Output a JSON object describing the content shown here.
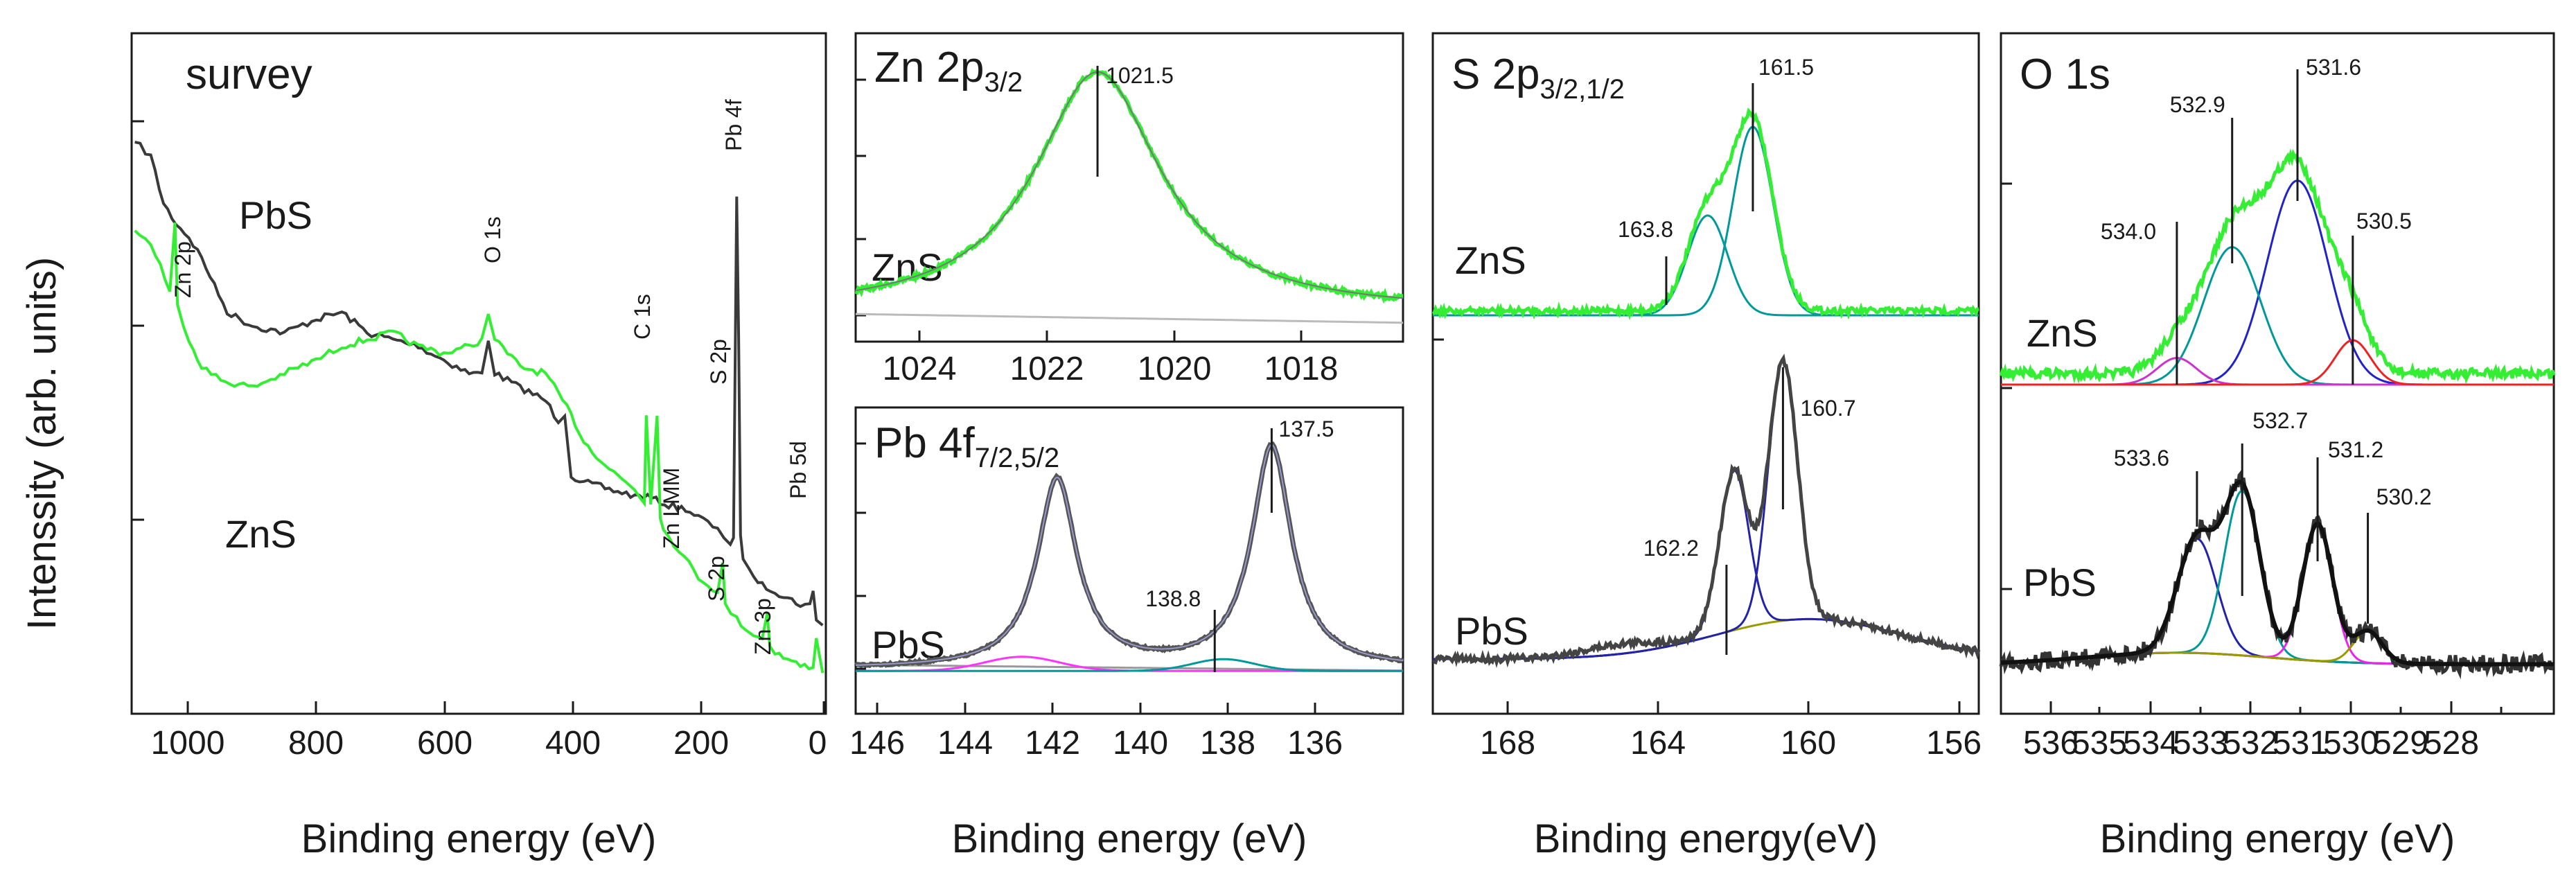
{
  "figure": {
    "y_axis_label": "Intenssity (arb. units)"
  },
  "chart_data": [
    {
      "id": "survey",
      "type": "line",
      "title": "survey",
      "xlabel": "Binding energy (eV)",
      "xlim": [
        1090,
        0
      ],
      "ylim": [
        0,
        100
      ],
      "xticks": [
        1000,
        800,
        600,
        400,
        200,
        0
      ],
      "series": [
        {
          "name": "PbS",
          "color": "#3a3a3a",
          "x": [
            1085,
            1060,
            1040,
            1020,
            1000,
            980,
            960,
            940,
            900,
            850,
            800,
            760,
            720,
            680,
            640,
            600,
            560,
            540,
            530,
            520,
            480,
            440,
            420,
            410,
            400,
            380,
            340,
            300,
            280,
            260,
            220,
            200,
            170,
            160,
            150,
            145,
            140,
            137,
            134,
            130,
            120,
            100,
            80,
            60,
            40,
            25,
            20,
            15,
            5
          ],
          "y": [
            84,
            82,
            75,
            72,
            70,
            67,
            63,
            59,
            57,
            56,
            58,
            59,
            56,
            55,
            54,
            52,
            50,
            50,
            55,
            50,
            48,
            46,
            43,
            44,
            35,
            34,
            33,
            32,
            32,
            31,
            30,
            29,
            27,
            26,
            25,
            26,
            76,
            55,
            26,
            23,
            21,
            19,
            18,
            17,
            16,
            16,
            18,
            14,
            13
          ]
        },
        {
          "name": "ZnS",
          "color": "#33ee33",
          "x": [
            1085,
            1060,
            1045,
            1030,
            1022,
            1018,
            1000,
            980,
            950,
            900,
            850,
            800,
            760,
            720,
            680,
            640,
            600,
            560,
            540,
            530,
            520,
            480,
            440,
            420,
            400,
            380,
            340,
            300,
            285,
            282,
            275,
            265,
            260,
            255,
            230,
            200,
            170,
            162,
            158,
            140,
            120,
            100,
            92,
            88,
            80,
            60,
            40,
            20,
            15,
            5
          ],
          "y": [
            71,
            69,
            66,
            62,
            72,
            60,
            55,
            51,
            49,
            48,
            50,
            52,
            54,
            55,
            56,
            54,
            53,
            54,
            55,
            59,
            55,
            51,
            50,
            47,
            44,
            40,
            36,
            33,
            31,
            44,
            31,
            44,
            29,
            27,
            24,
            20,
            18,
            22,
            16,
            14,
            12,
            11,
            15,
            10,
            9,
            8,
            7,
            7,
            11,
            6
          ]
        }
      ],
      "sample_labels": [
        "PbS",
        "ZnS"
      ],
      "annotations": [
        {
          "text": "Zn 2p",
          "x": 1022
        },
        {
          "text": "O 1s",
          "x": 531
        },
        {
          "text": "C 1s",
          "x": 285
        },
        {
          "text": "S 2p",
          "x": 162
        },
        {
          "text": "Pb 4f",
          "x": 138
        },
        {
          "text": "Pb 5d",
          "x": 20
        },
        {
          "text": "Zn LMM",
          "x": 262
        },
        {
          "text": "S 2p",
          "x": 162
        },
        {
          "text": "Zn 3p",
          "x": 90
        }
      ]
    },
    {
      "id": "zn2p",
      "type": "line",
      "title": "Zn 2p",
      "title_sub": "3/2",
      "xlabel": "",
      "xlim": [
        1025.3,
        1016.7
      ],
      "ylim": [
        0,
        100
      ],
      "xticks": [
        1024,
        1022,
        1020,
        1018
      ],
      "sample": "ZnS",
      "peaks": [
        {
          "energy": 1021.5,
          "label": "1021.5"
        }
      ],
      "series": [
        {
          "name": "ZnS data",
          "color": "#33ee33",
          "center": 1021.5,
          "width": 1.2,
          "height": 85,
          "base": 5
        },
        {
          "name": "fit envelope",
          "color": "#777777",
          "center": 1021.5,
          "width": 1.2,
          "height": 85,
          "base": 5
        },
        {
          "name": "background",
          "color": "#bbbbbb"
        }
      ]
    },
    {
      "id": "pb4f",
      "type": "line",
      "title": "Pb 4f",
      "title_sub": "7/2,5/2",
      "xlabel": "Binding energy (eV)",
      "xlim": [
        147,
        134.5
      ],
      "ylim": [
        0,
        100
      ],
      "xticks": [
        146,
        144,
        142,
        140,
        138,
        136
      ],
      "sample": "PbS",
      "peaks": [
        {
          "energy": 137.5,
          "label": "137.5"
        },
        {
          "energy": 138.8,
          "label": "138.8"
        }
      ],
      "series": [
        {
          "name": "PbS data",
          "color": "#444444",
          "centers": [
            142.4,
            137.5
          ],
          "heights": [
            73,
            85
          ],
          "width": 0.55
        },
        {
          "name": "Pb 4f5/2 component",
          "color": "#ff33ff",
          "center": 142.4
        },
        {
          "name": "minor component",
          "color": "#009999",
          "center": 138.8
        }
      ]
    },
    {
      "id": "s2p",
      "type": "line",
      "title": "S 2p",
      "title_sub": "3/2,1/2",
      "xlabel": "Binding energy(eV)",
      "xlim": [
        170,
        155.5
      ],
      "ylim": [
        0,
        100
      ],
      "xticks": [
        168,
        164,
        160,
        156
      ],
      "samples": [
        "ZnS",
        "PbS"
      ],
      "peaks": [
        {
          "energy": 161.5,
          "label": "161.5"
        },
        {
          "energy": 163.8,
          "label": "163.8"
        },
        {
          "energy": 160.7,
          "label": "160.7"
        },
        {
          "energy": 162.2,
          "label": "162.2"
        }
      ],
      "series": [
        {
          "name": "ZnS data",
          "color": "#33ee33",
          "components": [
            161.5,
            162.7
          ]
        },
        {
          "name": "ZnS components",
          "color": "#009999"
        },
        {
          "name": "PbS data",
          "color": "#444444",
          "components": [
            160.7,
            162.0
          ]
        },
        {
          "name": "PbS components",
          "color": "#2222aa"
        },
        {
          "name": "PbS background",
          "color": "#999900"
        }
      ]
    },
    {
      "id": "o1s",
      "type": "line",
      "title": "O 1s",
      "xlabel": "Binding energy (eV)",
      "xlim": [
        537.5,
        526.5
      ],
      "ylim": [
        0,
        100
      ],
      "xticks": [
        536,
        535,
        534,
        533,
        532,
        531,
        530,
        529,
        528
      ],
      "samples": [
        "ZnS",
        "PbS"
      ],
      "peaks": [
        {
          "energy": 531.6,
          "label": "531.6"
        },
        {
          "energy": 532.9,
          "label": "532.9"
        },
        {
          "energy": 534.0,
          "label": "534.0"
        },
        {
          "energy": 530.5,
          "label": "530.5"
        },
        {
          "energy": 532.7,
          "label": "532.7"
        },
        {
          "energy": 533.6,
          "label": "533.6"
        },
        {
          "energy": 531.2,
          "label": "531.2"
        },
        {
          "energy": 530.2,
          "label": "530.2"
        }
      ],
      "series": [
        {
          "name": "ZnS data",
          "color": "#33ee33"
        },
        {
          "name": "ZnS 531.6",
          "color": "#2222cc",
          "center": 531.6
        },
        {
          "name": "ZnS 532.9",
          "color": "#009999",
          "center": 532.9
        },
        {
          "name": "ZnS 534.0",
          "color": "#cc33cc",
          "center": 534.0
        },
        {
          "name": "ZnS 530.5",
          "color": "#ee2222",
          "center": 530.5
        },
        {
          "name": "PbS data",
          "color": "#333333"
        },
        {
          "name": "PbS 533.6",
          "color": "#2222aa",
          "center": 533.6
        },
        {
          "name": "PbS 532.7",
          "color": "#009999",
          "center": 532.7
        },
        {
          "name": "PbS 531.2",
          "color": "#ee22ee",
          "center": 531.2
        },
        {
          "name": "PbS 530.2",
          "color": "#999900",
          "center": 530.2
        }
      ]
    }
  ]
}
